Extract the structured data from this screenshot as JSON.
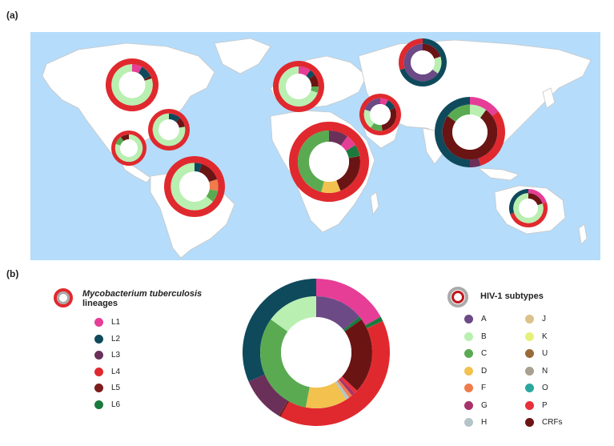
{
  "panels": {
    "a": "(a)",
    "b": "(b)"
  },
  "legend_tb": {
    "title_italic": "Mycobacterium tuberculosis",
    "title_rest": "lineages",
    "items": [
      {
        "label": "L1",
        "color": "#e63d97"
      },
      {
        "label": "L2",
        "color": "#0f4a5c"
      },
      {
        "label": "L3",
        "color": "#6b3059"
      },
      {
        "label": "L4",
        "color": "#e0292e"
      },
      {
        "label": "L5",
        "color": "#7d1c1c"
      },
      {
        "label": "L6",
        "color": "#1a7a3e"
      }
    ]
  },
  "legend_hiv": {
    "title": "HIV-1 subtypes",
    "col1": [
      {
        "label": "A",
        "color": "#6b4a85"
      },
      {
        "label": "B",
        "color": "#b9efb0"
      },
      {
        "label": "C",
        "color": "#5aaa52"
      },
      {
        "label": "D",
        "color": "#f2c14e"
      },
      {
        "label": "F",
        "color": "#f07c4a"
      },
      {
        "label": "G",
        "color": "#a8336b"
      },
      {
        "label": "H",
        "color": "#b5c4c8"
      }
    ],
    "col2": [
      {
        "label": "J",
        "color": "#dcc28a"
      },
      {
        "label": "K",
        "color": "#e6f07a"
      },
      {
        "label": "U",
        "color": "#9a6a38"
      },
      {
        "label": "N",
        "color": "#a8a090"
      },
      {
        "label": "O",
        "color": "#2aa8a0"
      },
      {
        "label": "P",
        "color": "#e8303a"
      },
      {
        "label": "CRFs",
        "color": "#6b1414"
      }
    ]
  },
  "colors": {
    "ocean": "#b5dcfa",
    "land": "#ffffff",
    "border": "#c8c8c8"
  }
}
